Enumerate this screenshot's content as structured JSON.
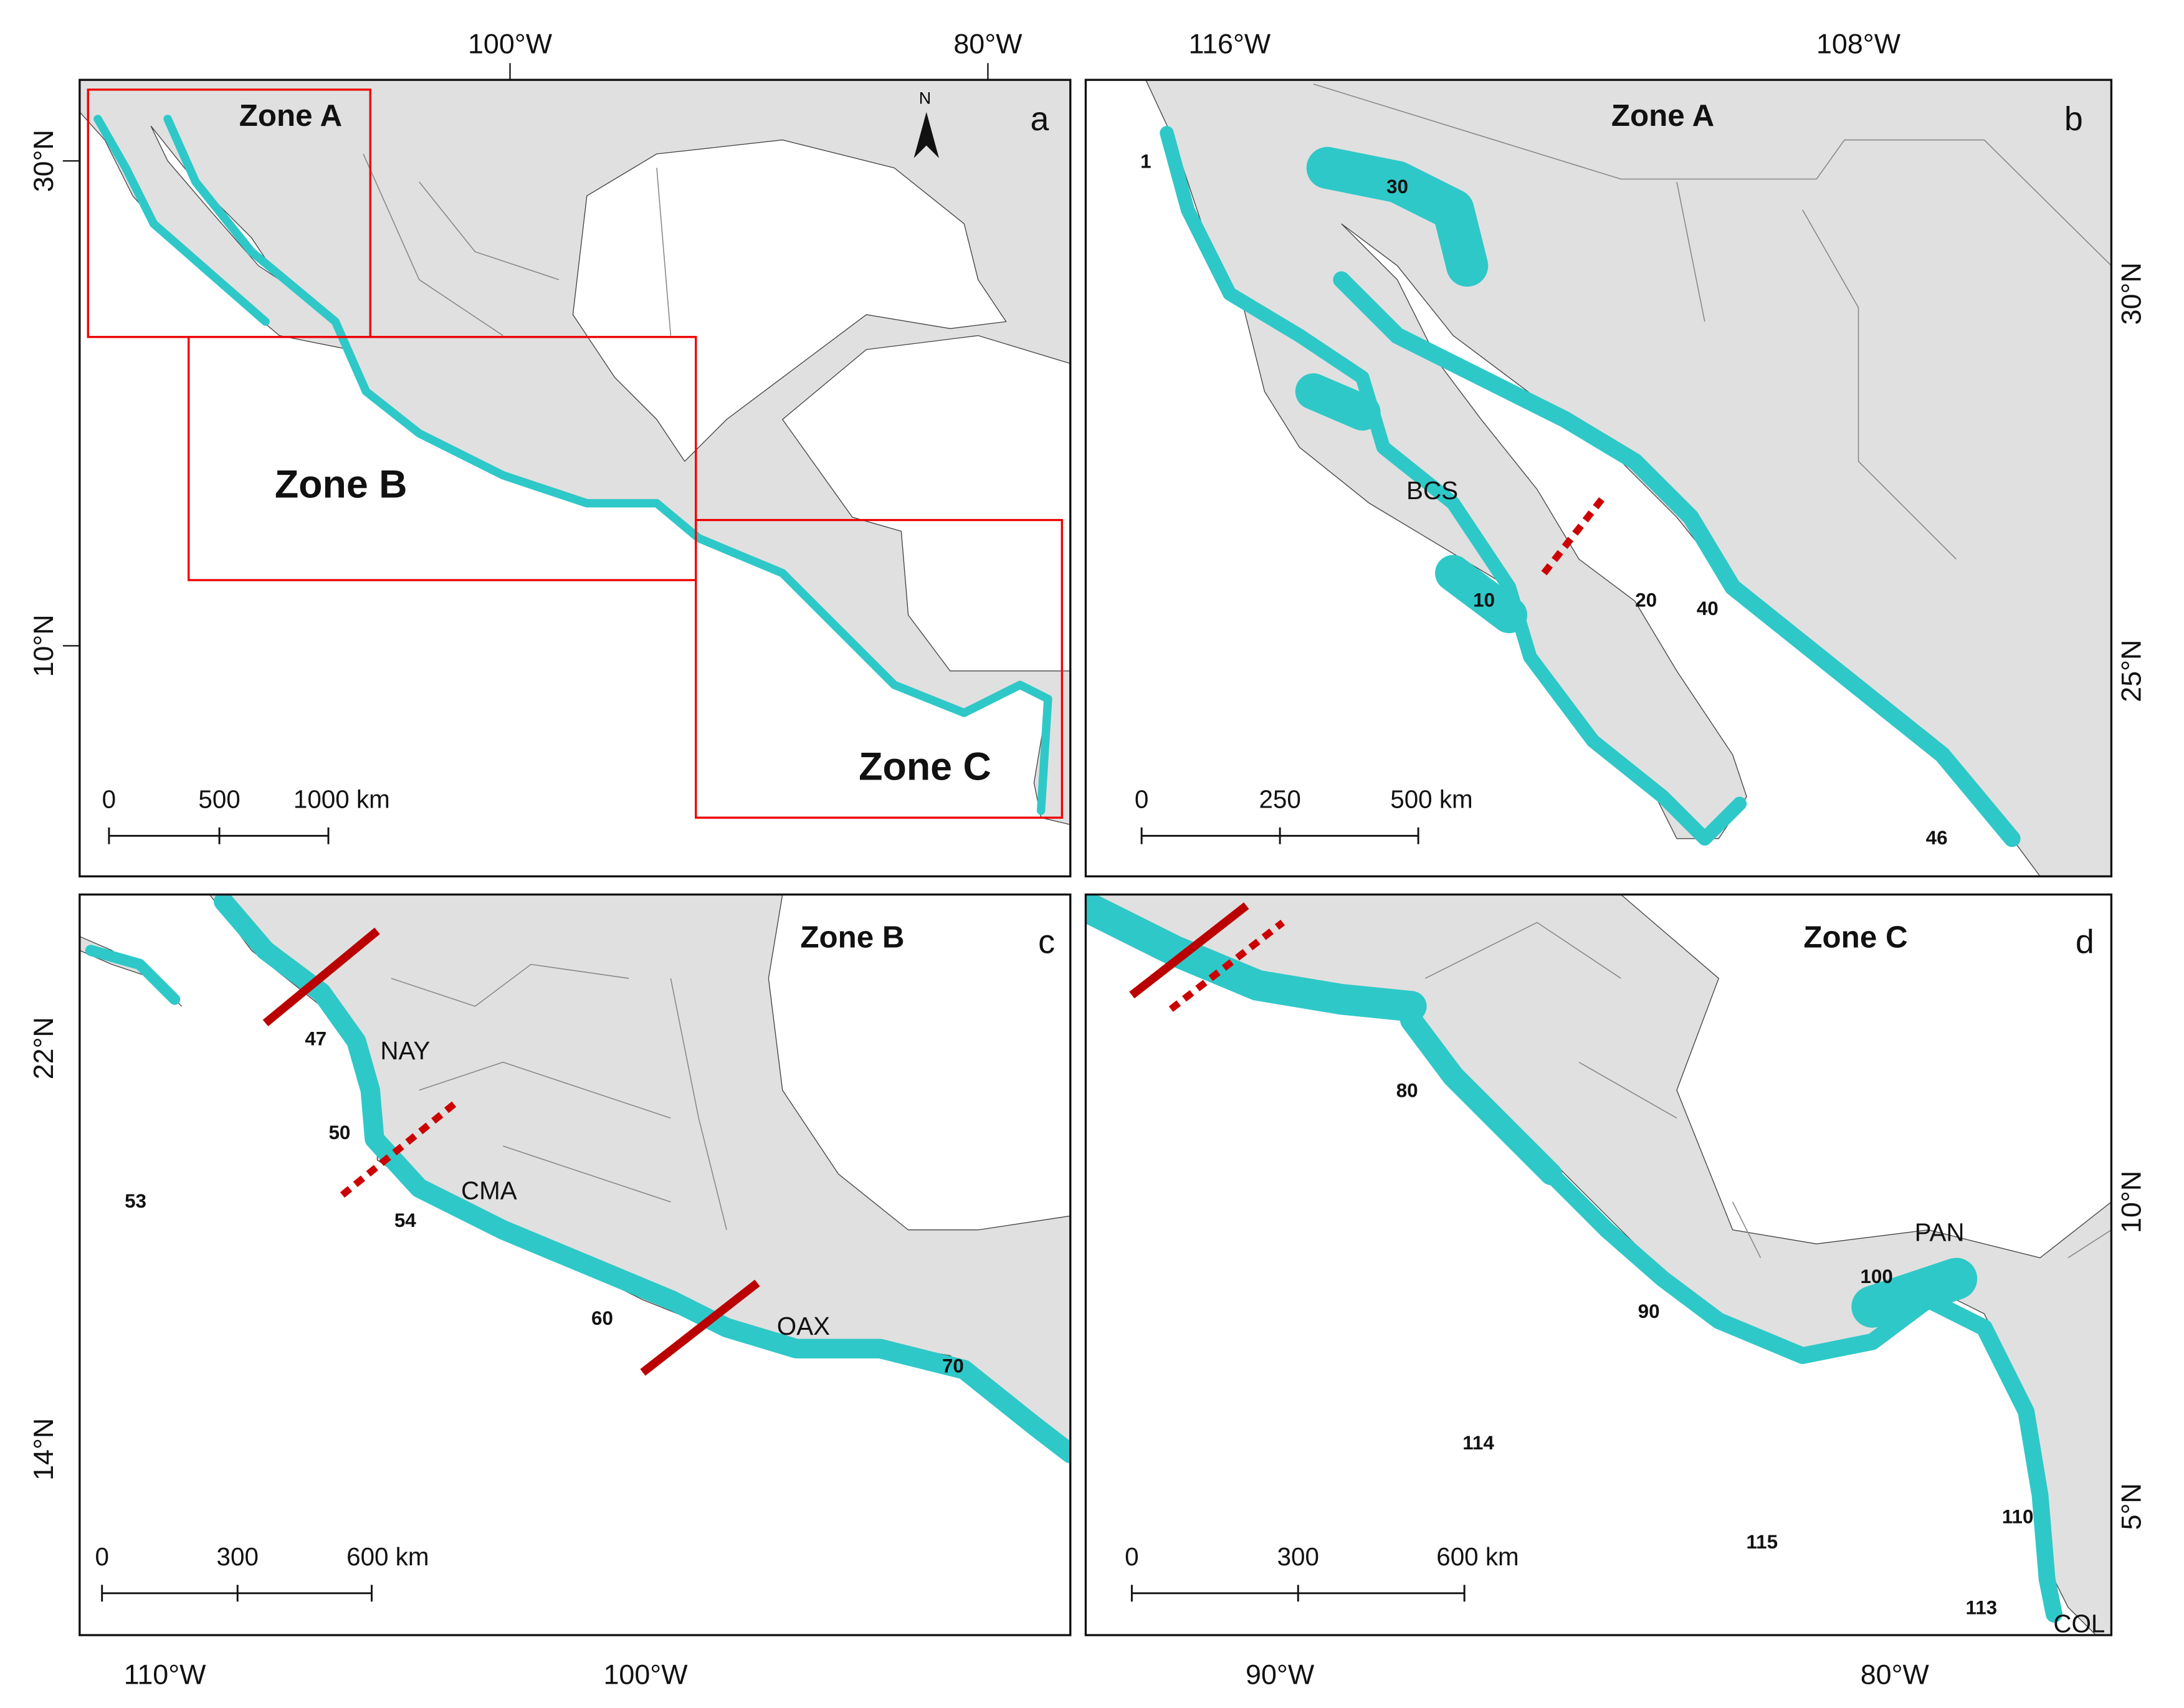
{
  "panels": [
    {
      "letter": "a",
      "zones": [
        "Zone A",
        "Zone B",
        "Zone C"
      ],
      "north": "N",
      "top_labels": [
        "100°W",
        "80°W"
      ],
      "side_labels": [
        "30°N",
        "10°N"
      ],
      "scale": [
        "0",
        "500",
        "1000  km"
      ]
    },
    {
      "letter": "b",
      "title": "Zone A",
      "top_labels": [
        "116°W",
        "108°W"
      ],
      "side_labels": [
        "30°N",
        "25°N"
      ],
      "region_labels": [
        "BCS"
      ],
      "unit_labels": [
        "1",
        "30",
        "10",
        "20",
        "40",
        "46"
      ],
      "scale": [
        "0",
        "250",
        "500 km"
      ]
    },
    {
      "letter": "c",
      "title": "Zone B",
      "bottom_labels": [
        "110°W",
        "100°W"
      ],
      "side_labels": [
        "22°N",
        "14°N"
      ],
      "region_labels": [
        "NAY",
        "CMA",
        "OAX"
      ],
      "unit_labels": [
        "47",
        "50",
        "53",
        "54",
        "60",
        "70"
      ],
      "scale": [
        "0",
        "300",
        "600 km"
      ]
    },
    {
      "letter": "d",
      "title": "Zone C",
      "bottom_labels": [
        "90°W",
        "80°W"
      ],
      "side_labels": [
        "10°N",
        "5°N"
      ],
      "region_labels": [
        "PAN",
        "COL"
      ],
      "unit_labels": [
        "80",
        "90",
        "100",
        "110",
        "113",
        "114",
        "115"
      ],
      "scale": [
        "0",
        "300",
        "600 km"
      ]
    }
  ]
}
